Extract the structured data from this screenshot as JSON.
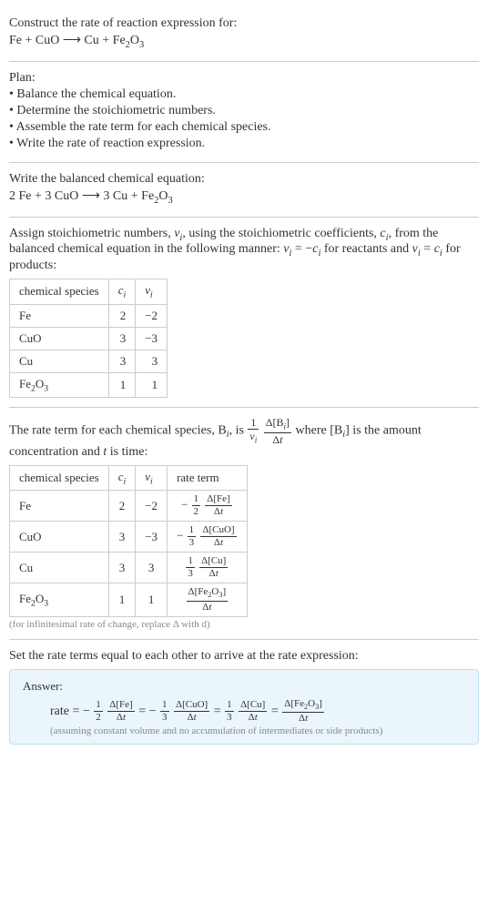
{
  "s1": {
    "prompt": "Construct the rate of reaction expression for:",
    "eq_lhs": "Fe + CuO",
    "arrow": "⟶",
    "eq_rhs_pre": "Cu + Fe",
    "eq_rhs_sub1": "2",
    "eq_rhs_mid": "O",
    "eq_rhs_sub2": "3"
  },
  "plan": {
    "title": "Plan:",
    "b1": "• Balance the chemical equation.",
    "b2": "• Determine the stoichiometric numbers.",
    "b3": "• Assemble the rate term for each chemical species.",
    "b4": "• Write the rate of reaction expression."
  },
  "bal": {
    "title": "Write the balanced chemical equation:",
    "lhs": "2 Fe + 3 CuO",
    "arrow": "⟶",
    "rhs_pre": "3 Cu + Fe",
    "rhs_sub1": "2",
    "rhs_mid": "O",
    "rhs_sub2": "3"
  },
  "assign": {
    "t1": "Assign stoichiometric numbers, ",
    "nu": "ν",
    "i": "i",
    "t2": ", using the stoichiometric coefficients, ",
    "c": "c",
    "t3": ", from the balanced chemical equation in the following manner: ",
    "eqA_l": "ν",
    "eqA_eq": " = −",
    "eqA_r": "c",
    "t4": " for reactants and ",
    "eqB_l": "ν",
    "eqB_eq": " = ",
    "eqB_r": "c",
    "t5": " for products:",
    "h1": "chemical species",
    "h2c": "c",
    "h3n": "ν",
    "r1s": "Fe",
    "r1c": "2",
    "r1n": "−2",
    "r2s": "CuO",
    "r2c": "3",
    "r2n": "−3",
    "r3s": "Cu",
    "r3c": "3",
    "r3n": "3",
    "r4pre": "Fe",
    "r4sub1": "2",
    "r4mid": "O",
    "r4sub2": "3",
    "r4c": "1",
    "r4n": "1"
  },
  "rt": {
    "t1": "The rate term for each chemical species, B",
    "t2": ", is ",
    "one": "1",
    "nu": "ν",
    "i": "i",
    "dB_top_pre": "Δ[B",
    "dB_top_suf": "]",
    "dB_bot": "Δt",
    "t3": " where [B",
    "t4": "] is the amount concentration and ",
    "tvar": "t",
    "t5": " is time:",
    "h1": "chemical species",
    "h2c": "c",
    "h3n": "ν",
    "h4": "rate term",
    "r1s": "Fe",
    "r1c": "2",
    "r1n": "−2",
    "r1_sign": "−",
    "r1_fnum": "1",
    "r1_fden": "2",
    "r1_dnum": "Δ[Fe]",
    "r1_dden": "Δt",
    "r2s": "CuO",
    "r2c": "3",
    "r2n": "−3",
    "r2_sign": "−",
    "r2_fnum": "1",
    "r2_fden": "3",
    "r2_dnum": "Δ[CuO]",
    "r2_dden": "Δt",
    "r3s": "Cu",
    "r3c": "3",
    "r3n": "3",
    "r3_fnum": "1",
    "r3_fden": "3",
    "r3_dnum": "Δ[Cu]",
    "r3_dden": "Δt",
    "r4pre": "Fe",
    "r4sub1": "2",
    "r4mid": "O",
    "r4sub2": "3",
    "r4c": "1",
    "r4n": "1",
    "r4_dnum_pre": "Δ[Fe",
    "r4_dnum_s1": "2",
    "r4_dnum_mid": "O",
    "r4_dnum_s2": "3",
    "r4_dnum_suf": "]",
    "r4_dden": "Δt",
    "foot": "(for infinitesimal rate of change, replace Δ with d)"
  },
  "final": {
    "intro": "Set the rate terms equal to each other to arrive at the rate expression:",
    "ans_label": "Answer:",
    "rate": "rate = ",
    "neg": "−",
    "half_n": "1",
    "half_d": "2",
    "dFe_n": "Δ[Fe]",
    "dFe_d": "Δt",
    "eq": " = ",
    "third_n": "1",
    "third_d": "3",
    "dCuO_n": "Δ[CuO]",
    "dCuO_d": "Δt",
    "dCu_n": "Δ[Cu]",
    "dCu_d": "Δt",
    "dFe2O3_pre": "Δ[Fe",
    "dFe2O3_s1": "2",
    "dFe2O3_mid": "O",
    "dFe2O3_s2": "3",
    "dFe2O3_suf": "]",
    "dFe2O3_d": "Δt",
    "note": "(assuming constant volume and no accumulation of intermediates or side products)"
  }
}
